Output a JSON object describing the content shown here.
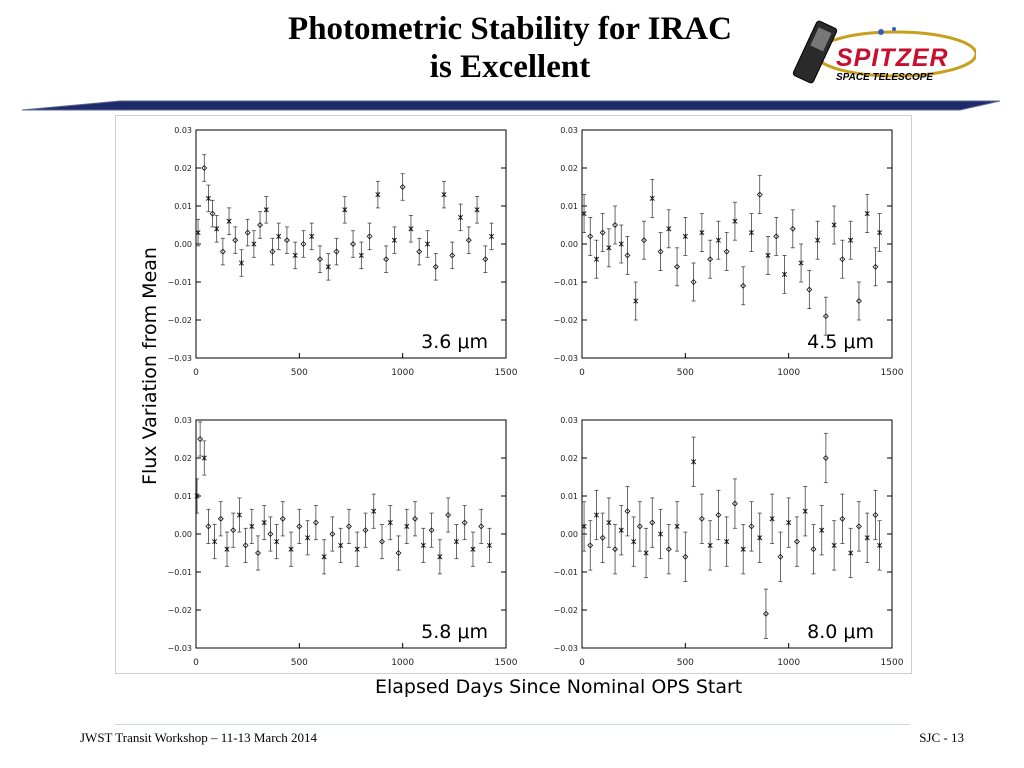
{
  "slide": {
    "title_line1": "Photometric Stability for IRAC",
    "title_line2": "is Excellent",
    "logo_main": "SPITZER",
    "logo_sub": "SPACE TELESCOPE",
    "footer_left": "JWST Transit Workshop – 11-13 March 2014",
    "footer_right": "SJC - 13",
    "ylabel": "Flux Variation from Mean",
    "xlabel": "Elapsed Days Since Nominal OPS Start",
    "accent_color": "#1f2a6b"
  },
  "chart_data": [
    {
      "type": "scatter",
      "title": "",
      "label": "3.6 μm",
      "xlim": [
        0,
        1500
      ],
      "ylim": [
        -0.03,
        0.03
      ],
      "xticks": [
        "0",
        "500",
        "1000",
        "1500"
      ],
      "yticks": [
        "0.03",
        "0.02",
        "0.01",
        "0.00",
        "−0.01",
        "−0.02",
        "−0.03"
      ],
      "x": [
        10,
        40,
        60,
        80,
        100,
        130,
        160,
        190,
        220,
        250,
        280,
        310,
        340,
        370,
        400,
        440,
        480,
        520,
        560,
        600,
        640,
        680,
        720,
        760,
        800,
        840,
        880,
        920,
        960,
        1000,
        1040,
        1080,
        1120,
        1160,
        1200,
        1240,
        1280,
        1320,
        1360,
        1400,
        1430
      ],
      "y": [
        0.003,
        0.02,
        0.012,
        0.008,
        0.004,
        -0.002,
        0.006,
        0.001,
        -0.005,
        0.003,
        0.0,
        0.005,
        0.009,
        -0.002,
        0.002,
        0.001,
        -0.003,
        0.0,
        0.002,
        -0.004,
        -0.006,
        -0.002,
        0.009,
        0.0,
        -0.003,
        0.002,
        0.013,
        -0.004,
        0.001,
        0.015,
        0.004,
        -0.002,
        0.0,
        -0.006,
        0.013,
        -0.003,
        0.007,
        0.001,
        0.009,
        -0.004,
        0.002
      ],
      "yerr": 0.0035
    },
    {
      "type": "scatter",
      "title": "",
      "label": "4.5 μm",
      "xlim": [
        0,
        1500
      ],
      "ylim": [
        -0.03,
        0.03
      ],
      "xticks": [
        "0",
        "500",
        "1000",
        "1500"
      ],
      "yticks": [
        "0.03",
        "0.02",
        "0.01",
        "0.00",
        "−0.01",
        "−0.02",
        "−0.03"
      ],
      "x": [
        10,
        40,
        70,
        100,
        130,
        160,
        190,
        220,
        260,
        300,
        340,
        380,
        420,
        460,
        500,
        540,
        580,
        620,
        660,
        700,
        740,
        780,
        820,
        860,
        900,
        940,
        980,
        1020,
        1060,
        1100,
        1140,
        1180,
        1220,
        1260,
        1300,
        1340,
        1380,
        1420,
        1440
      ],
      "y": [
        0.008,
        0.002,
        -0.004,
        0.003,
        -0.001,
        0.005,
        0.0,
        -0.003,
        -0.015,
        0.001,
        0.012,
        -0.002,
        0.004,
        -0.006,
        0.002,
        -0.01,
        0.003,
        -0.004,
        0.001,
        -0.002,
        0.006,
        -0.011,
        0.003,
        0.013,
        -0.003,
        0.002,
        -0.008,
        0.004,
        -0.005,
        -0.012,
        0.001,
        -0.019,
        0.005,
        -0.004,
        0.001,
        -0.015,
        0.008,
        -0.006,
        0.003
      ],
      "yerr": 0.005
    },
    {
      "type": "scatter",
      "title": "",
      "label": "5.8 μm",
      "xlim": [
        0,
        1500
      ],
      "ylim": [
        -0.03,
        0.03
      ],
      "xticks": [
        "0",
        "500",
        "1000",
        "1500"
      ],
      "yticks": [
        "0.03",
        "0.02",
        "0.01",
        "0.00",
        "−0.01",
        "−0.02",
        "−0.03"
      ],
      "x": [
        5,
        20,
        40,
        60,
        90,
        120,
        150,
        180,
        210,
        240,
        270,
        300,
        330,
        360,
        390,
        420,
        460,
        500,
        540,
        580,
        620,
        660,
        700,
        740,
        780,
        820,
        860,
        900,
        940,
        980,
        1020,
        1060,
        1100,
        1140,
        1180,
        1220,
        1260,
        1300,
        1340,
        1380,
        1420
      ],
      "y": [
        0.01,
        0.025,
        0.02,
        0.002,
        -0.002,
        0.004,
        -0.004,
        0.001,
        0.005,
        -0.003,
        0.002,
        -0.005,
        0.003,
        0.0,
        -0.002,
        0.004,
        -0.004,
        0.002,
        -0.001,
        0.003,
        -0.006,
        0.0,
        -0.003,
        0.002,
        -0.004,
        0.001,
        0.006,
        -0.002,
        0.003,
        -0.005,
        0.002,
        0.004,
        -0.003,
        0.001,
        -0.006,
        0.005,
        -0.002,
        0.003,
        -0.004,
        0.002,
        -0.003
      ],
      "yerr": 0.0045
    },
    {
      "type": "scatter",
      "title": "",
      "label": "8.0 μm",
      "xlim": [
        0,
        1500
      ],
      "ylim": [
        -0.03,
        0.03
      ],
      "xticks": [
        "0",
        "500",
        "1000",
        "1500"
      ],
      "yticks": [
        "0.03",
        "0.02",
        "0.01",
        "0.00",
        "−0.01",
        "−0.02",
        "−0.03"
      ],
      "x": [
        10,
        40,
        70,
        100,
        130,
        160,
        190,
        220,
        250,
        280,
        310,
        340,
        380,
        420,
        460,
        500,
        540,
        580,
        620,
        660,
        700,
        740,
        780,
        820,
        860,
        890,
        920,
        960,
        1000,
        1040,
        1080,
        1120,
        1160,
        1180,
        1220,
        1260,
        1300,
        1340,
        1380,
        1420,
        1440
      ],
      "y": [
        0.002,
        -0.003,
        0.005,
        -0.001,
        0.003,
        -0.004,
        0.001,
        0.006,
        -0.002,
        0.002,
        -0.005,
        0.003,
        0.0,
        -0.004,
        0.002,
        -0.006,
        0.019,
        0.004,
        -0.003,
        0.005,
        -0.002,
        0.008,
        -0.004,
        0.002,
        -0.001,
        -0.021,
        0.004,
        -0.006,
        0.003,
        -0.002,
        0.006,
        -0.004,
        0.001,
        0.02,
        -0.003,
        0.004,
        -0.005,
        0.002,
        -0.001,
        0.005,
        -0.003
      ],
      "yerr": 0.0065
    }
  ]
}
